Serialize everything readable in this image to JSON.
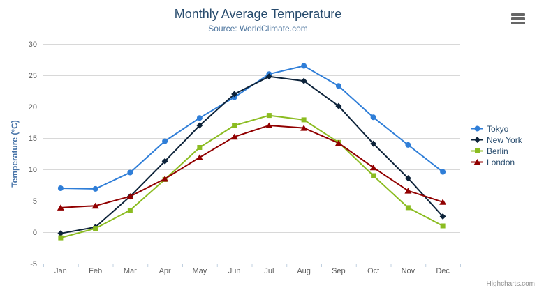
{
  "icons": {
    "context_menu": "hamburger-icon"
  },
  "credits": "Highcharts.com",
  "colors": {
    "title": "#274b6d",
    "subtitle": "#4d759e",
    "axis_title": "#4572a7",
    "tick_label": "#606060",
    "gridline": "#d8d8d8",
    "axis_line": "#c0d0e0",
    "legend_text": "#274b6d",
    "credits": "#909090",
    "menu_icon": "#666666"
  },
  "chart_data": {
    "type": "line",
    "title": "Monthly Average Temperature",
    "subtitle": "Source: WorldClimate.com",
    "categories": [
      "Jan",
      "Feb",
      "Mar",
      "Apr",
      "May",
      "Jun",
      "Jul",
      "Aug",
      "Sep",
      "Oct",
      "Nov",
      "Dec"
    ],
    "xlabel": "",
    "ylabel": "Temperature (°C)",
    "ylim": [
      -5,
      30
    ],
    "yticks": [
      30,
      25,
      20,
      15,
      10,
      5,
      0,
      -5
    ],
    "grid": "horizontal",
    "legend_position": "right",
    "series": [
      {
        "name": "Tokyo",
        "color": "#2f7ed8",
        "marker": "circle",
        "values": [
          7.0,
          6.9,
          9.5,
          14.5,
          18.2,
          21.5,
          25.2,
          26.5,
          23.3,
          18.3,
          13.9,
          9.6
        ]
      },
      {
        "name": "New York",
        "color": "#0d233a",
        "marker": "diamond",
        "values": [
          -0.2,
          0.8,
          5.7,
          11.3,
          17.0,
          22.0,
          24.8,
          24.1,
          20.1,
          14.1,
          8.6,
          2.5
        ]
      },
      {
        "name": "Berlin",
        "color": "#8bbc21",
        "marker": "square",
        "values": [
          -0.9,
          0.6,
          3.5,
          8.4,
          13.5,
          17.0,
          18.6,
          17.9,
          14.3,
          9.0,
          3.9,
          1.0
        ]
      },
      {
        "name": "London",
        "color": "#910000",
        "marker": "triangle",
        "values": [
          3.9,
          4.2,
          5.7,
          8.5,
          11.9,
          15.2,
          17.0,
          16.6,
          14.2,
          10.3,
          6.6,
          4.8
        ]
      }
    ]
  }
}
